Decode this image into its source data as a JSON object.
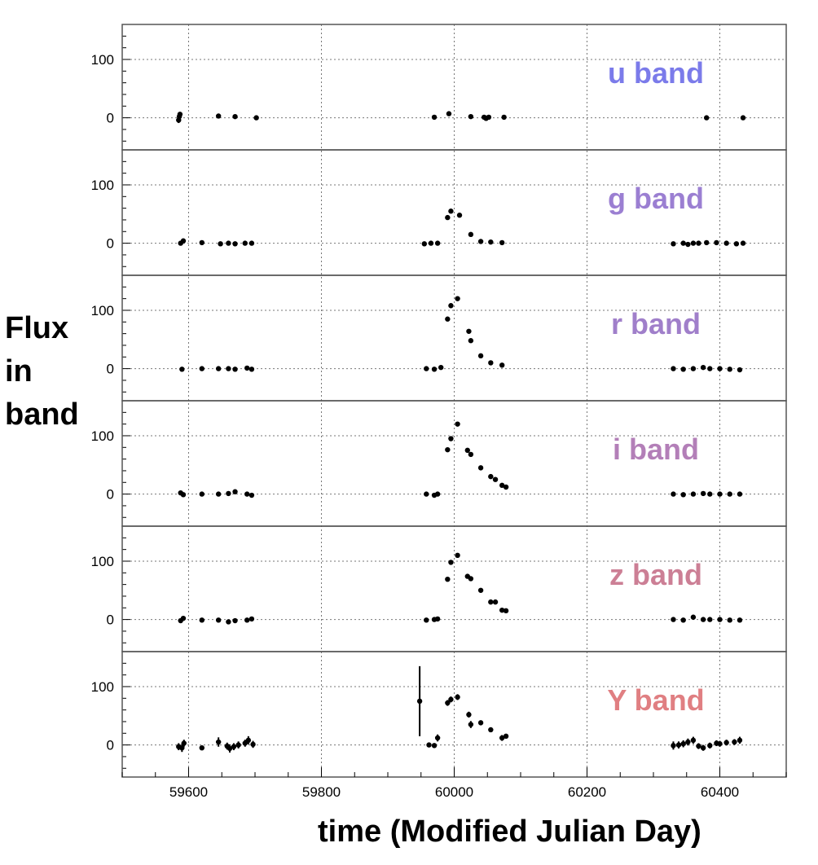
{
  "chart_data": {
    "type": "scatter",
    "xlabel": "time (Modified Julian Day)",
    "ylabel_lines": [
      "Flux",
      "in",
      "band"
    ],
    "xlim": [
      59500,
      60500
    ],
    "ylim": [
      -55,
      160
    ],
    "x_ticks": [
      59600,
      59800,
      60000,
      60200,
      60400
    ],
    "y_ticks": [
      0,
      100
    ],
    "grid": true,
    "panels": [
      {
        "label": "u band",
        "color": "#7b7bea",
        "points": [
          [
            59585,
            -4,
            5
          ],
          [
            59586,
            2,
            4
          ],
          [
            59587,
            6,
            4
          ],
          [
            59645,
            3,
            2
          ],
          [
            59670,
            2,
            2
          ],
          [
            59702,
            0,
            3
          ],
          [
            59970,
            1,
            2
          ],
          [
            59992,
            7,
            3
          ],
          [
            60025,
            2,
            2
          ],
          [
            60045,
            1,
            2
          ],
          [
            60048,
            -1,
            3
          ],
          [
            60052,
            1,
            3
          ],
          [
            60075,
            1,
            2
          ],
          [
            60380,
            0,
            3
          ],
          [
            60435,
            0,
            3
          ]
        ]
      },
      {
        "label": "g band",
        "color": "#9b7fd2",
        "points": [
          [
            59588,
            0,
            2
          ],
          [
            59592,
            4,
            2
          ],
          [
            59620,
            1,
            2
          ],
          [
            59648,
            -1,
            2
          ],
          [
            59660,
            0,
            2
          ],
          [
            59670,
            -1,
            2
          ],
          [
            59685,
            0,
            2
          ],
          [
            59695,
            0,
            2
          ],
          [
            59955,
            -1,
            2
          ],
          [
            59965,
            0,
            2
          ],
          [
            59975,
            0,
            2
          ],
          [
            59990,
            44,
            3
          ],
          [
            59995,
            55,
            3
          ],
          [
            60008,
            48,
            3
          ],
          [
            60025,
            15,
            3
          ],
          [
            60040,
            3,
            2
          ],
          [
            60055,
            2,
            2
          ],
          [
            60072,
            1,
            2
          ],
          [
            60330,
            -1,
            2
          ],
          [
            60345,
            0,
            2
          ],
          [
            60352,
            -2,
            2
          ],
          [
            60360,
            0,
            2
          ],
          [
            60368,
            0,
            2
          ],
          [
            60380,
            1,
            2
          ],
          [
            60395,
            1,
            2
          ],
          [
            60410,
            0,
            2
          ],
          [
            60425,
            -1,
            2
          ],
          [
            60435,
            0,
            2
          ]
        ]
      },
      {
        "label": "r band",
        "color": "#a07fca",
        "points": [
          [
            59590,
            -1,
            2
          ],
          [
            59620,
            0,
            2
          ],
          [
            59645,
            0,
            2
          ],
          [
            59660,
            0,
            2
          ],
          [
            59670,
            -1,
            2
          ],
          [
            59688,
            1,
            2
          ],
          [
            59695,
            -1,
            2
          ],
          [
            59958,
            0,
            2
          ],
          [
            59970,
            -1,
            2
          ],
          [
            59980,
            2,
            2
          ],
          [
            59990,
            85,
            3
          ],
          [
            59995,
            108,
            3
          ],
          [
            60005,
            120,
            3
          ],
          [
            60022,
            64,
            3
          ],
          [
            60025,
            48,
            3
          ],
          [
            60040,
            22,
            2
          ],
          [
            60055,
            10,
            2
          ],
          [
            60072,
            6,
            2
          ],
          [
            60330,
            0,
            2
          ],
          [
            60345,
            -1,
            2
          ],
          [
            60360,
            0,
            2
          ],
          [
            60375,
            2,
            2
          ],
          [
            60385,
            0,
            2
          ],
          [
            60400,
            0,
            2
          ],
          [
            60415,
            -1,
            2
          ],
          [
            60430,
            -2,
            2
          ]
        ]
      },
      {
        "label": "i band",
        "color": "#b37fb8",
        "points": [
          [
            59588,
            2,
            3
          ],
          [
            59592,
            -1,
            2
          ],
          [
            59620,
            0,
            2
          ],
          [
            59645,
            0,
            2
          ],
          [
            59660,
            1,
            2
          ],
          [
            59670,
            4,
            3
          ],
          [
            59688,
            0,
            2
          ],
          [
            59695,
            -2,
            2
          ],
          [
            59958,
            0,
            2
          ],
          [
            59970,
            -2,
            2
          ],
          [
            59975,
            0,
            2
          ],
          [
            59990,
            76,
            3
          ],
          [
            59995,
            95,
            3
          ],
          [
            60005,
            120,
            3
          ],
          [
            60020,
            75,
            3
          ],
          [
            60025,
            68,
            3
          ],
          [
            60040,
            45,
            2
          ],
          [
            60055,
            30,
            2
          ],
          [
            60062,
            25,
            2
          ],
          [
            60072,
            15,
            2
          ],
          [
            60078,
            12,
            2
          ],
          [
            60330,
            0,
            2
          ],
          [
            60345,
            -1,
            2
          ],
          [
            60360,
            0,
            2
          ],
          [
            60375,
            1,
            2
          ],
          [
            60385,
            0,
            2
          ],
          [
            60400,
            0,
            2
          ],
          [
            60415,
            0,
            2
          ],
          [
            60430,
            0,
            2
          ]
        ]
      },
      {
        "label": "z band",
        "color": "#cc7f95",
        "points": [
          [
            59588,
            -2,
            4
          ],
          [
            59592,
            2,
            3
          ],
          [
            59620,
            -1,
            2
          ],
          [
            59645,
            -1,
            2
          ],
          [
            59660,
            -4,
            3
          ],
          [
            59670,
            -2,
            3
          ],
          [
            59688,
            -1,
            3
          ],
          [
            59695,
            1,
            3
          ],
          [
            59958,
            -1,
            2
          ],
          [
            59970,
            0,
            2
          ],
          [
            59975,
            1,
            2
          ],
          [
            59990,
            69,
            3
          ],
          [
            59995,
            98,
            3
          ],
          [
            60005,
            110,
            3
          ],
          [
            60020,
            74,
            3
          ],
          [
            60025,
            70,
            3
          ],
          [
            60040,
            50,
            2
          ],
          [
            60055,
            30,
            2
          ],
          [
            60062,
            30,
            2
          ],
          [
            60072,
            16,
            2
          ],
          [
            60078,
            15,
            2
          ],
          [
            60330,
            0,
            2
          ],
          [
            60345,
            -1,
            2
          ],
          [
            60360,
            4,
            2
          ],
          [
            60375,
            0,
            2
          ],
          [
            60385,
            0,
            2
          ],
          [
            60400,
            0,
            2
          ],
          [
            60415,
            -1,
            2
          ],
          [
            60430,
            -1,
            2
          ]
        ]
      },
      {
        "label": "Y band",
        "color": "#e07f82",
        "points": [
          [
            59585,
            -3,
            6
          ],
          [
            59590,
            -5,
            7
          ],
          [
            59593,
            3,
            6
          ],
          [
            59620,
            -5,
            4
          ],
          [
            59645,
            5,
            8
          ],
          [
            59658,
            -2,
            6
          ],
          [
            59662,
            -6,
            7
          ],
          [
            59668,
            -3,
            6
          ],
          [
            59675,
            0,
            6
          ],
          [
            59685,
            3,
            6
          ],
          [
            59690,
            8,
            7
          ],
          [
            59697,
            1,
            6
          ],
          [
            59948,
            75,
            60
          ],
          [
            59962,
            0,
            3
          ],
          [
            59970,
            -1,
            4
          ],
          [
            59975,
            12,
            6
          ],
          [
            59990,
            72,
            5
          ],
          [
            59995,
            78,
            5
          ],
          [
            60005,
            82,
            5
          ],
          [
            60022,
            52,
            5
          ],
          [
            60025,
            35,
            6
          ],
          [
            60040,
            38,
            4
          ],
          [
            60055,
            26,
            4
          ],
          [
            60072,
            12,
            5
          ],
          [
            60078,
            15,
            4
          ],
          [
            60330,
            -1,
            7
          ],
          [
            60338,
            0,
            6
          ],
          [
            60345,
            2,
            6
          ],
          [
            60352,
            5,
            6
          ],
          [
            60360,
            8,
            6
          ],
          [
            60368,
            -2,
            5
          ],
          [
            60375,
            -5,
            5
          ],
          [
            60385,
            -1,
            5
          ],
          [
            60395,
            3,
            5
          ],
          [
            60400,
            2,
            5
          ],
          [
            60410,
            4,
            5
          ],
          [
            60422,
            5,
            5
          ],
          [
            60430,
            8,
            6
          ]
        ]
      }
    ]
  }
}
